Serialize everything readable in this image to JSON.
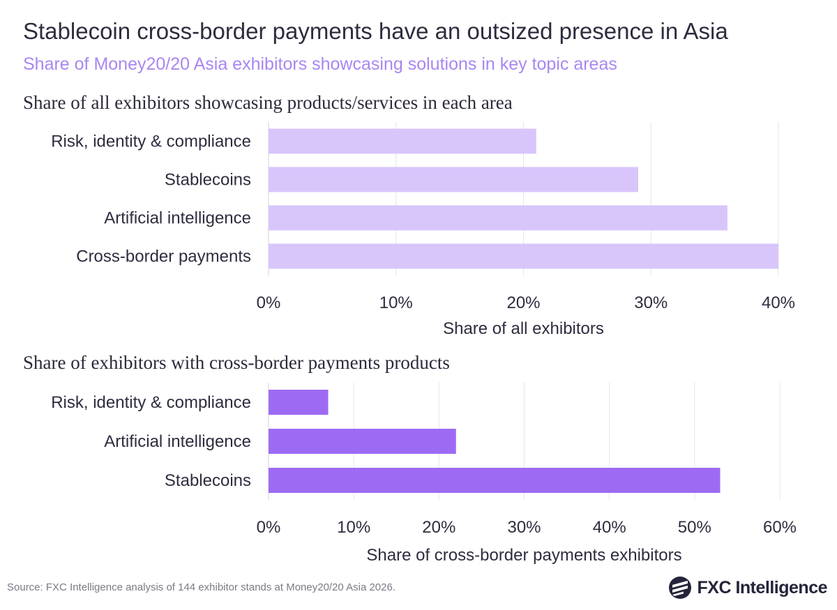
{
  "title": "Stablecoin cross-border payments have an outsized presence in Asia",
  "subtitle": "Share of Money20/20 Asia exhibitors showcasing solutions in key topic areas",
  "source": "Source: FXC Intelligence analysis of 144 exhibitor stands at Money20/20 Asia 2026.",
  "logo": {
    "text": "FXC Intelligence",
    "icon": "fxc-logo-icon"
  },
  "colors": {
    "panel1_bar": "#d8c6fb",
    "panel2_bar": "#9d6bf3",
    "subtitle": "#a887f2"
  },
  "chart_data": [
    {
      "type": "bar",
      "orientation": "horizontal",
      "title": "Share of all exhibitors showcasing products/services in each area",
      "categories": [
        "Risk, identity & compliance",
        "Stablecoins",
        "Artificial intelligence",
        "Cross-border payments"
      ],
      "values": [
        21,
        29,
        36,
        40
      ],
      "unit": "%",
      "xlabel": "Share of all exhibitors",
      "xlim": [
        0,
        40
      ],
      "ticks": [
        0,
        10,
        20,
        30,
        40
      ],
      "tick_labels": [
        "0%",
        "10%",
        "20%",
        "30%",
        "40%"
      ],
      "grid": true,
      "color": "#d8c6fb"
    },
    {
      "type": "bar",
      "orientation": "horizontal",
      "title": "Share of exhibitors with cross-border payments products",
      "categories": [
        "Risk, identity & compliance",
        "Artificial intelligence",
        "Stablecoins"
      ],
      "values": [
        7,
        22,
        53
      ],
      "unit": "%",
      "xlabel": "Share of cross-border payments exhibitors",
      "xlim": [
        0,
        60
      ],
      "ticks": [
        0,
        10,
        20,
        30,
        40,
        50,
        60
      ],
      "tick_labels": [
        "0%",
        "10%",
        "20%",
        "30%",
        "40%",
        "50%",
        "60%"
      ],
      "grid": true,
      "color": "#9d6bf3"
    }
  ]
}
